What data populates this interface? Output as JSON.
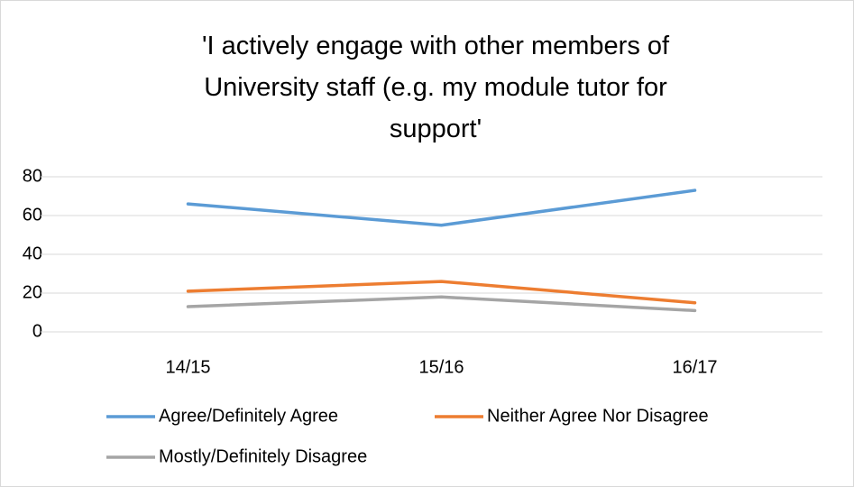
{
  "chart_data": {
    "type": "line",
    "title": "'I actively engage with other members of University staff (e.g. my module tutor for support'",
    "categories": [
      "14/15",
      "15/16",
      "16/17"
    ],
    "series": [
      {
        "name": "Agree/Definitely Agree",
        "color": "#5b9bd5",
        "values": [
          66,
          55,
          73
        ]
      },
      {
        "name": "Neither Agree Nor Disagree",
        "color": "#ed7d31",
        "values": [
          21,
          26,
          15
        ]
      },
      {
        "name": "Mostly/Definitely Disagree",
        "color": "#a5a5a5",
        "values": [
          13,
          18,
          11
        ]
      }
    ],
    "ylim": [
      0,
      80
    ],
    "yticks": [
      0,
      20,
      40,
      60,
      80
    ],
    "grid": true,
    "legend": "bottom"
  }
}
